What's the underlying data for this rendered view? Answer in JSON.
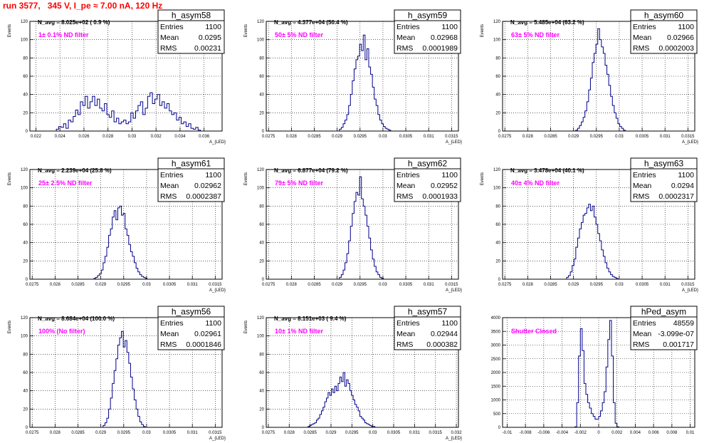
{
  "title": "run 3577,   345 V, I_pe ≈ 7.00 nA, 120 Hz",
  "colors": {
    "histogram": "#00008b",
    "annotation": "#ff00ff",
    "title": "#ff0000",
    "frame": "#000000"
  },
  "chart_data": [
    {
      "type": "histogram",
      "name": "h_asym58",
      "navg": "N_avg = 8.025e+02 ( 0.9 %)",
      "note": "1± 0.1% ND filter",
      "stats": [
        [
          "Entries",
          "1100"
        ],
        [
          "Mean",
          "0.0295"
        ],
        [
          "RMS",
          "0.00231"
        ]
      ],
      "xlim": [
        0.0215,
        0.0375
      ],
      "ylim": [
        0,
        120
      ],
      "ylabel": "Events",
      "xlabel": "A_{LED}",
      "xticks": [
        0.022,
        0.024,
        0.026,
        0.028,
        0.03,
        0.032,
        0.034,
        0.036
      ],
      "xtick_labels": [
        "0.022",
        "0.024",
        "0.026",
        "0.028",
        "0.03",
        "0.032",
        "0.034",
        "0.036"
      ],
      "yticks": [
        0,
        20,
        40,
        60,
        80,
        100,
        120
      ],
      "ytick_labels": [
        "0",
        "20",
        "40",
        "60",
        "80",
        "100",
        "120"
      ],
      "bins": {
        "start": 0.0235,
        "width": 0.0002,
        "counts": [
          0,
          2,
          5,
          4,
          8,
          3,
          12,
          10,
          16,
          23,
          18,
          32,
          28,
          38,
          25,
          32,
          38,
          28,
          35,
          25,
          22,
          30,
          18,
          15,
          22,
          10,
          14,
          8,
          10,
          12,
          8,
          10,
          20,
          14,
          22,
          28,
          32,
          18,
          25,
          38,
          42,
          30,
          35,
          40,
          28,
          32,
          25,
          30,
          22,
          18,
          20,
          12,
          15,
          8,
          10,
          5,
          8,
          3,
          2,
          4,
          1,
          0
        ]
      }
    },
    {
      "type": "histogram",
      "name": "h_asym59",
      "navg": "N_avg = 4.377e+04 (50.4 %)",
      "note": "50± 5% ND filter",
      "stats": [
        [
          "Entries",
          "1100"
        ],
        [
          "Mean",
          "0.02968"
        ],
        [
          "RMS",
          "0.0001989"
        ]
      ],
      "xlim": [
        0.02745,
        0.03165
      ],
      "ylim": [
        0,
        120
      ],
      "ylabel": "Events",
      "xlabel": "A_{LED}",
      "xticks": [
        0.0275,
        0.028,
        0.0285,
        0.029,
        0.0295,
        0.03,
        0.0305,
        0.031,
        0.0315
      ],
      "xtick_labels": [
        "0.0275",
        "0.028",
        "0.0285",
        "0.029",
        "0.0295",
        "0.03",
        "0.0305",
        "0.031",
        "0.0315"
      ],
      "yticks": [
        0,
        20,
        40,
        60,
        80,
        100,
        120
      ],
      "ytick_labels": [
        "0",
        "20",
        "40",
        "60",
        "80",
        "100",
        "120"
      ],
      "bins": {
        "start": 0.02905,
        "width": 4e-05,
        "counts": [
          2,
          4,
          8,
          12,
          18,
          28,
          40,
          55,
          68,
          78,
          82,
          95,
          88,
          105,
          78,
          90,
          70,
          62,
          48,
          35,
          28,
          18,
          12,
          8,
          5,
          3,
          2,
          1
        ]
      }
    },
    {
      "type": "histogram",
      "name": "h_asym60",
      "navg": "N_avg = 5.485e+04 (63.2 %)",
      "note": "63± 5% ND filter",
      "stats": [
        [
          "Entries",
          "1100"
        ],
        [
          "Mean",
          "0.02966"
        ],
        [
          "RMS",
          "0.0002003"
        ]
      ],
      "xlim": [
        0.02745,
        0.03165
      ],
      "ylim": [
        0,
        120
      ],
      "ylabel": "Events",
      "xlabel": "A_{LED}",
      "xticks": [
        0.0275,
        0.028,
        0.0285,
        0.029,
        0.0295,
        0.03,
        0.0305,
        0.031,
        0.0315
      ],
      "xtick_labels": [
        "0.0275",
        "0.028",
        "0.0285",
        "0.029",
        "0.0295",
        "0.03",
        "0.0305",
        "0.031",
        "0.0315"
      ],
      "yticks": [
        0,
        20,
        40,
        60,
        80,
        100,
        120
      ],
      "ytick_labels": [
        "0",
        "20",
        "40",
        "60",
        "80",
        "100",
        "120"
      ],
      "bins": {
        "start": 0.02905,
        "width": 4e-05,
        "counts": [
          1,
          3,
          6,
          10,
          15,
          22,
          32,
          45,
          58,
          75,
          85,
          95,
          112,
          100,
          92,
          85,
          72,
          62,
          50,
          38,
          28,
          20,
          14,
          8,
          5,
          3,
          1
        ]
      }
    },
    {
      "type": "histogram",
      "name": "h_asym61",
      "navg": "N_avg = 2.239e+04 (25.8 %)",
      "note": "25± 2.5% ND filter",
      "stats": [
        [
          "Entries",
          "1100"
        ],
        [
          "Mean",
          "0.02962"
        ],
        [
          "RMS",
          "0.0002387"
        ]
      ],
      "xlim": [
        0.02745,
        0.03165
      ],
      "ylim": [
        0,
        120
      ],
      "ylabel": "Events",
      "xlabel": "A_{LED}",
      "xticks": [
        0.0275,
        0.028,
        0.0285,
        0.029,
        0.0295,
        0.03,
        0.0305,
        0.031,
        0.0315
      ],
      "xtick_labels": [
        "0.0275",
        "0.028",
        "0.0285",
        "0.029",
        "0.0295",
        "0.03",
        "0.0305",
        "0.031",
        "0.0315"
      ],
      "yticks": [
        0,
        20,
        40,
        60,
        80,
        100,
        120
      ],
      "ytick_labels": [
        "0",
        "20",
        "40",
        "60",
        "80",
        "100",
        "120"
      ],
      "bins": {
        "start": 0.02885,
        "width": 4e-05,
        "counts": [
          1,
          2,
          4,
          6,
          10,
          18,
          25,
          35,
          48,
          55,
          68,
          75,
          65,
          78,
          80,
          70,
          72,
          55,
          48,
          38,
          30,
          25,
          18,
          12,
          8,
          5,
          3,
          2,
          1
        ]
      }
    },
    {
      "type": "histogram",
      "name": "h_asym62",
      "navg": "N_avg = 6.877e+04 (79.2 %)",
      "note": "79± 5% ND filter",
      "stats": [
        [
          "Entries",
          "1100"
        ],
        [
          "Mean",
          "0.02952"
        ],
        [
          "RMS",
          "0.0001933"
        ]
      ],
      "xlim": [
        0.02745,
        0.03165
      ],
      "ylim": [
        0,
        120
      ],
      "ylabel": "Events",
      "xlabel": "A_{LED}",
      "xticks": [
        0.0275,
        0.028,
        0.0285,
        0.029,
        0.0295,
        0.03,
        0.0305,
        0.031,
        0.0315
      ],
      "xtick_labels": [
        "0.0275",
        "0.028",
        "0.0285",
        "0.029",
        "0.0295",
        "0.03",
        "0.0305",
        "0.031",
        "0.0315"
      ],
      "yticks": [
        0,
        20,
        40,
        60,
        80,
        100,
        120
      ],
      "ytick_labels": [
        "0",
        "20",
        "40",
        "60",
        "80",
        "100",
        "120"
      ],
      "bins": {
        "start": 0.02905,
        "width": 4e-05,
        "counts": [
          2,
          5,
          10,
          18,
          28,
          42,
          58,
          72,
          85,
          95,
          92,
          112,
          88,
          80,
          70,
          58,
          45,
          32,
          22,
          14,
          8,
          5,
          2,
          1
        ]
      }
    },
    {
      "type": "histogram",
      "name": "h_asym63",
      "navg": "N_avg = 3.478e+04 (40.1 %)",
      "note": "40± 4% ND filter",
      "stats": [
        [
          "Entries",
          "1100"
        ],
        [
          "Mean",
          "0.0294"
        ],
        [
          "RMS",
          "0.0002317"
        ]
      ],
      "xlim": [
        0.02745,
        0.03165
      ],
      "ylim": [
        0,
        120
      ],
      "ylabel": "Events",
      "xlabel": "A_{LED}",
      "xticks": [
        0.0275,
        0.028,
        0.0285,
        0.029,
        0.0295,
        0.03,
        0.0305,
        0.031,
        0.0315
      ],
      "xtick_labels": [
        "0.0275",
        "0.028",
        "0.0285",
        "0.029",
        "0.0295",
        "0.03",
        "0.0305",
        "0.031",
        "0.0315"
      ],
      "yticks": [
        0,
        20,
        40,
        60,
        80,
        100,
        120
      ],
      "ytick_labels": [
        "0",
        "20",
        "40",
        "60",
        "80",
        "100",
        "120"
      ],
      "bins": {
        "start": 0.02885,
        "width": 4e-05,
        "counts": [
          2,
          4,
          8,
          15,
          22,
          35,
          45,
          55,
          62,
          70,
          72,
          78,
          82,
          75,
          80,
          68,
          60,
          50,
          42,
          32,
          25,
          18,
          12,
          8,
          5,
          3,
          2,
          1
        ]
      }
    },
    {
      "type": "histogram",
      "name": "h_asym56",
      "navg": "N_avg = 8.684e+04 (100.0 %)",
      "note": "100% (No filter)",
      "stats": [
        [
          "Entries",
          "1100"
        ],
        [
          "Mean",
          "0.02961"
        ],
        [
          "RMS",
          "0.0001846"
        ]
      ],
      "xlim": [
        0.02745,
        0.03165
      ],
      "ylim": [
        0,
        120
      ],
      "ylabel": "Events",
      "xlabel": "A_{LED}",
      "xticks": [
        0.0275,
        0.028,
        0.0285,
        0.029,
        0.0295,
        0.03,
        0.0305,
        0.031,
        0.0315
      ],
      "xtick_labels": [
        "0.0275",
        "0.028",
        "0.0285",
        "0.029",
        "0.0295",
        "0.03",
        "0.0305",
        "0.031",
        "0.0315"
      ],
      "yticks": [
        0,
        20,
        40,
        60,
        80,
        100,
        120
      ],
      "ytick_labels": [
        "0",
        "20",
        "40",
        "60",
        "80",
        "100",
        "120"
      ],
      "bins": {
        "start": 0.02905,
        "width": 4e-05,
        "counts": [
          2,
          5,
          10,
          20,
          32,
          48,
          62,
          75,
          90,
          98,
          105,
          88,
          95,
          82,
          70,
          55,
          42,
          30,
          20,
          12,
          6,
          3,
          1
        ]
      }
    },
    {
      "type": "histogram",
      "name": "h_asym57",
      "navg": "N_avg = 8.151e+03 ( 9.4 %)",
      "note": "10± 1% ND filter",
      "stats": [
        [
          "Entries",
          "1100"
        ],
        [
          "Mean",
          "0.02944"
        ],
        [
          "RMS",
          "0.000382"
        ]
      ],
      "xlim": [
        0.02745,
        0.03205
      ],
      "ylim": [
        0,
        120
      ],
      "ylabel": "Events",
      "xlabel": "A_{LED}",
      "xticks": [
        0.0275,
        0.028,
        0.0285,
        0.029,
        0.0295,
        0.03,
        0.0305,
        0.031,
        0.0315,
        0.032
      ],
      "xtick_labels": [
        "0.0275",
        "0.028",
        "0.0285",
        "0.029",
        "0.0295",
        "0.03",
        "0.0305",
        "0.031",
        "0.0315",
        "0.032"
      ],
      "yticks": [
        0,
        20,
        40,
        60,
        80,
        100,
        120
      ],
      "ytick_labels": [
        "0",
        "20",
        "40",
        "60",
        "80",
        "100",
        "120"
      ],
      "bins": {
        "start": 0.02845,
        "width": 4e-05,
        "counts": [
          1,
          2,
          3,
          4,
          5,
          8,
          10,
          14,
          18,
          22,
          28,
          32,
          38,
          35,
          42,
          38,
          45,
          40,
          48,
          55,
          50,
          60,
          45,
          52,
          48,
          40,
          35,
          30,
          25,
          22,
          18,
          12,
          10,
          8,
          5,
          4,
          3,
          2,
          1,
          1
        ]
      }
    },
    {
      "type": "histogram",
      "name": "hPed_asym",
      "navg": "",
      "note": "Shutter Closed",
      "stats": [
        [
          "Entries",
          "48559"
        ],
        [
          "Mean",
          "-3.099e-07"
        ],
        [
          "RMS",
          "0.001717"
        ]
      ],
      "xlim": [
        -0.0105,
        0.0105
      ],
      "ylim": [
        0,
        4000
      ],
      "ylabel": "",
      "xlabel": "",
      "xticks": [
        -0.01,
        -0.008,
        -0.006,
        -0.004,
        -0.002,
        0,
        0.002,
        0.004,
        0.006,
        0.008,
        0.01
      ],
      "xtick_labels": [
        "-0.01",
        "-0.008",
        "-0.006",
        "-0.004",
        "-0.002",
        "0",
        "0.002",
        "0.004",
        "0.006",
        "0.008",
        "0.01"
      ],
      "yticks": [
        0,
        500,
        1000,
        1500,
        2000,
        2500,
        3000,
        3500,
        4000
      ],
      "ytick_labels": [
        "0",
        "500",
        "1000",
        "1500",
        "2000",
        "2500",
        "3000",
        "3500",
        "4000"
      ],
      "bins": {
        "start": -0.0026,
        "width": 0.0002,
        "counts": [
          20,
          900,
          2600,
          3600,
          2800,
          1600,
          1200,
          900,
          700,
          500,
          400,
          300,
          300,
          400,
          600,
          900,
          1300,
          2200,
          3200,
          3900,
          2600,
          900,
          150,
          20
        ]
      }
    }
  ]
}
